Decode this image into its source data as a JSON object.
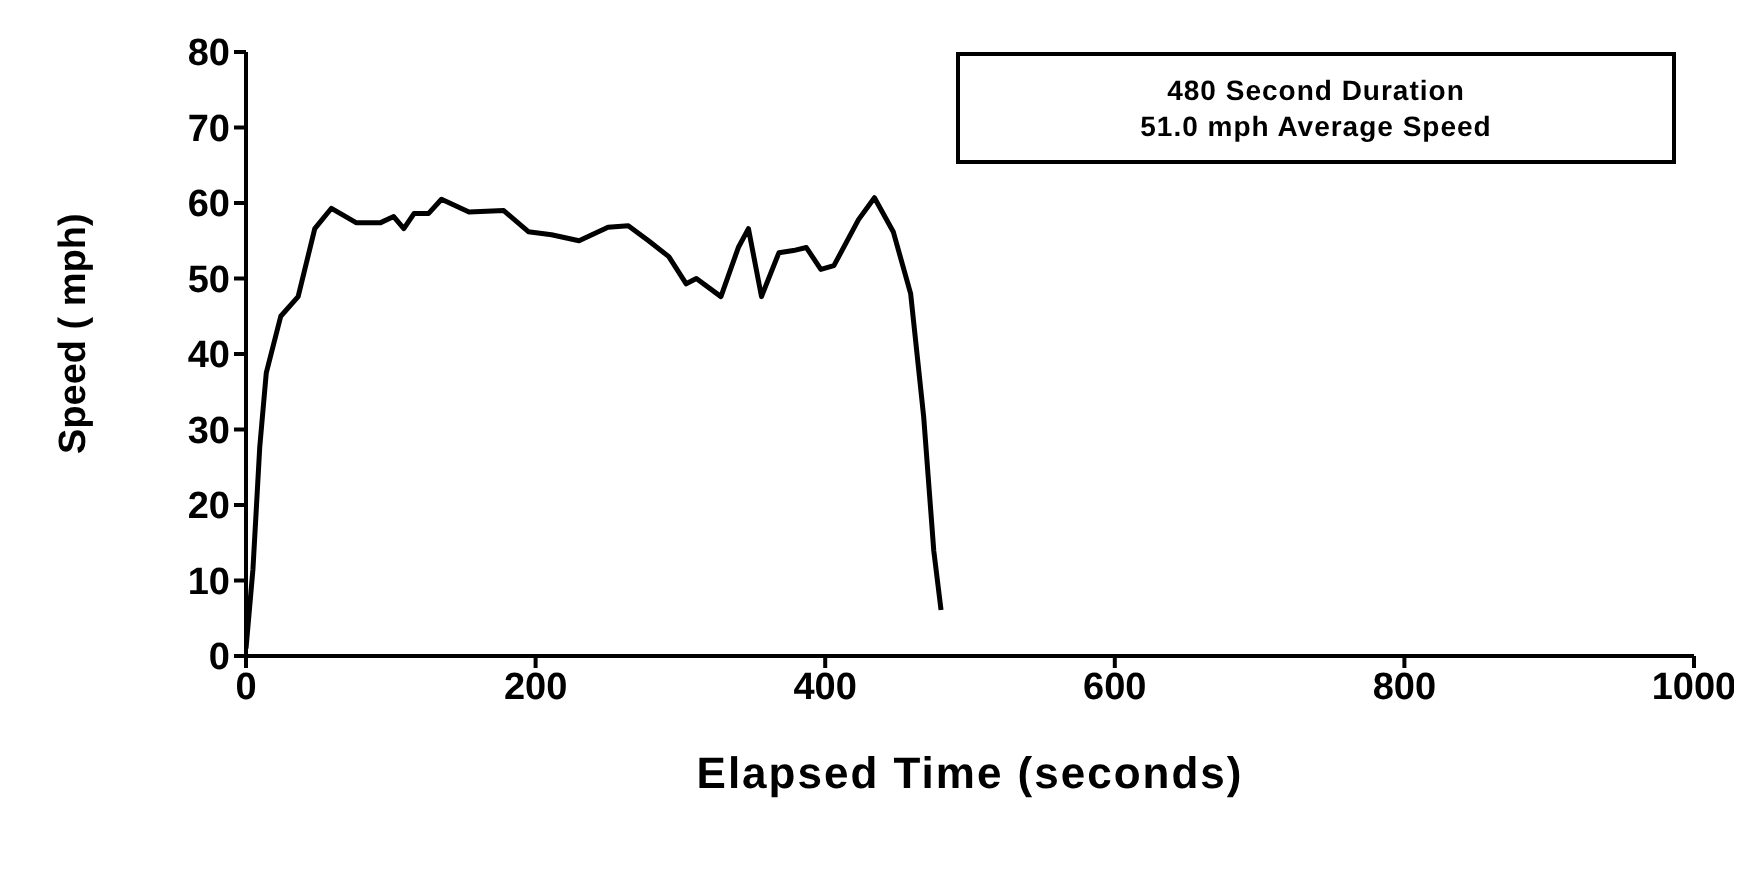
{
  "chart_data": {
    "type": "line",
    "xlabel": "Elapsed Time (seconds)",
    "ylabel": "Speed ( mph)",
    "annotations": [
      "480 Second Duration",
      "51.0 mph Average Speed"
    ],
    "xlim": [
      0,
      1000
    ],
    "xticks": [
      0,
      200,
      400,
      600,
      800,
      1000
    ],
    "ylim": [
      0,
      80
    ],
    "yticks": [
      0,
      10,
      20,
      30,
      40,
      50,
      60,
      70,
      80
    ],
    "grid": false,
    "marker": "none",
    "line_style": "solid",
    "series": [
      {
        "color": "#000000",
        "x": [
          0,
          4.8,
          9.5,
          14,
          24,
          36,
          47.5,
          59,
          76,
          93,
          102,
          109,
          116,
          126,
          135,
          154,
          178,
          195,
          211,
          230,
          250,
          264,
          278,
          292,
          304,
          311,
          328,
          340,
          347,
          356,
          368,
          378,
          387,
          397,
          406,
          423,
          434,
          447,
          459,
          468,
          475,
          480
        ],
        "values": [
          1,
          11.5,
          27.7,
          37.5,
          45,
          47.6,
          56.6,
          59.3,
          57.4,
          57.4,
          58.2,
          56.6,
          58.6,
          58.6,
          60.5,
          58.8,
          59,
          56.2,
          55.8,
          55,
          56.8,
          57,
          55,
          52.9,
          49.3,
          50,
          47.6,
          54.1,
          56.6,
          47.6,
          53.4,
          53.7,
          54.1,
          51.2,
          51.7,
          57.8,
          60.7,
          56.2,
          48,
          31.7,
          13.9,
          6.1
        ]
      }
    ]
  }
}
